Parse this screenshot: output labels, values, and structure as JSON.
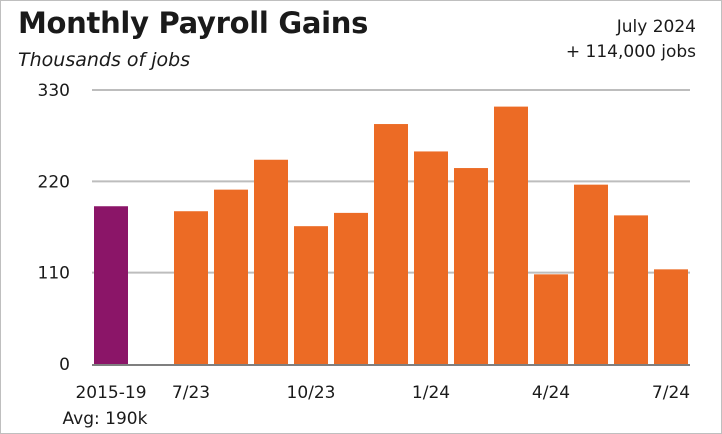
{
  "title": "Monthly Payroll Gains",
  "subtitle": "Thousands of jobs",
  "callout": {
    "line1": "July 2024",
    "line2": "+ 114,000 jobs"
  },
  "colors": {
    "baseline_bar": "#8b1568",
    "monthly_bar": "#ec6b25",
    "grid": "#bdbdbd",
    "axis": "#7f7f7f"
  },
  "chart_data": {
    "type": "bar",
    "title": "Monthly Payroll Gains",
    "subtitle": "Thousands of jobs",
    "xlabel": "",
    "ylabel": "",
    "ylim": [
      0,
      330
    ],
    "yticks": [
      0,
      110,
      220,
      330
    ],
    "grid": true,
    "categories": [
      "2015-19 Avg",
      "7/23",
      "8/23",
      "9/23",
      "10/23",
      "11/23",
      "12/23",
      "1/24",
      "2/24",
      "3/24",
      "4/24",
      "5/24",
      "6/24",
      "7/24"
    ],
    "values": [
      190,
      184,
      210,
      246,
      166,
      182,
      289,
      256,
      236,
      310,
      108,
      216,
      179,
      114
    ],
    "xtick_labels": [
      {
        "category": "2015-19 Avg",
        "label": "2015-19",
        "sublabel": "Avg: 190k"
      },
      {
        "category": "7/23",
        "label": "7/23"
      },
      {
        "category": "10/23",
        "label": "10/23"
      },
      {
        "category": "1/24",
        "label": "1/24"
      },
      {
        "category": "4/24",
        "label": "4/24"
      },
      {
        "category": "7/24",
        "label": "7/24"
      }
    ]
  }
}
